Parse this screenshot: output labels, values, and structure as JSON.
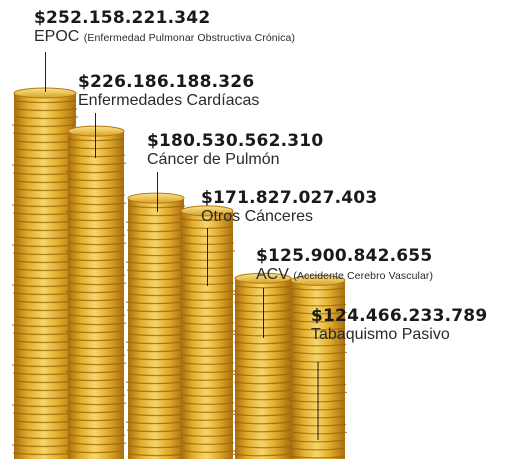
{
  "chart_data": {
    "type": "bar",
    "colors": {
      "coin_light": "#f6d56a",
      "coin_mid": "#e2ac2c",
      "coin_dark": "#a86e0e",
      "text": "#1a1a1a"
    },
    "categories": [
      {
        "value_label": "$252.158.221.342",
        "name": "EPOC",
        "detail": "(Enfermedad Pulmonar Obstructiva Crónica)"
      },
      {
        "value_label": "$226.186.188.326",
        "name": "Enfermedades Cardíacas",
        "detail": ""
      },
      {
        "value_label": "$180.530.562.310",
        "name": "Cáncer de Pulmón",
        "detail": ""
      },
      {
        "value_label": "$171.827.027.403",
        "name": "Otros Cánceres",
        "detail": ""
      },
      {
        "value_label": "$125.900.842.655",
        "name": "ACV",
        "detail": "(Accidente Cerebro Vascular)"
      },
      {
        "value_label": "$124.466.233.789",
        "name": "Tabaquismo Pasivo",
        "detail": ""
      }
    ],
    "values": [
      252158221342,
      226186188326,
      180530562310,
      171827027403,
      125900842655,
      124466233789
    ]
  }
}
